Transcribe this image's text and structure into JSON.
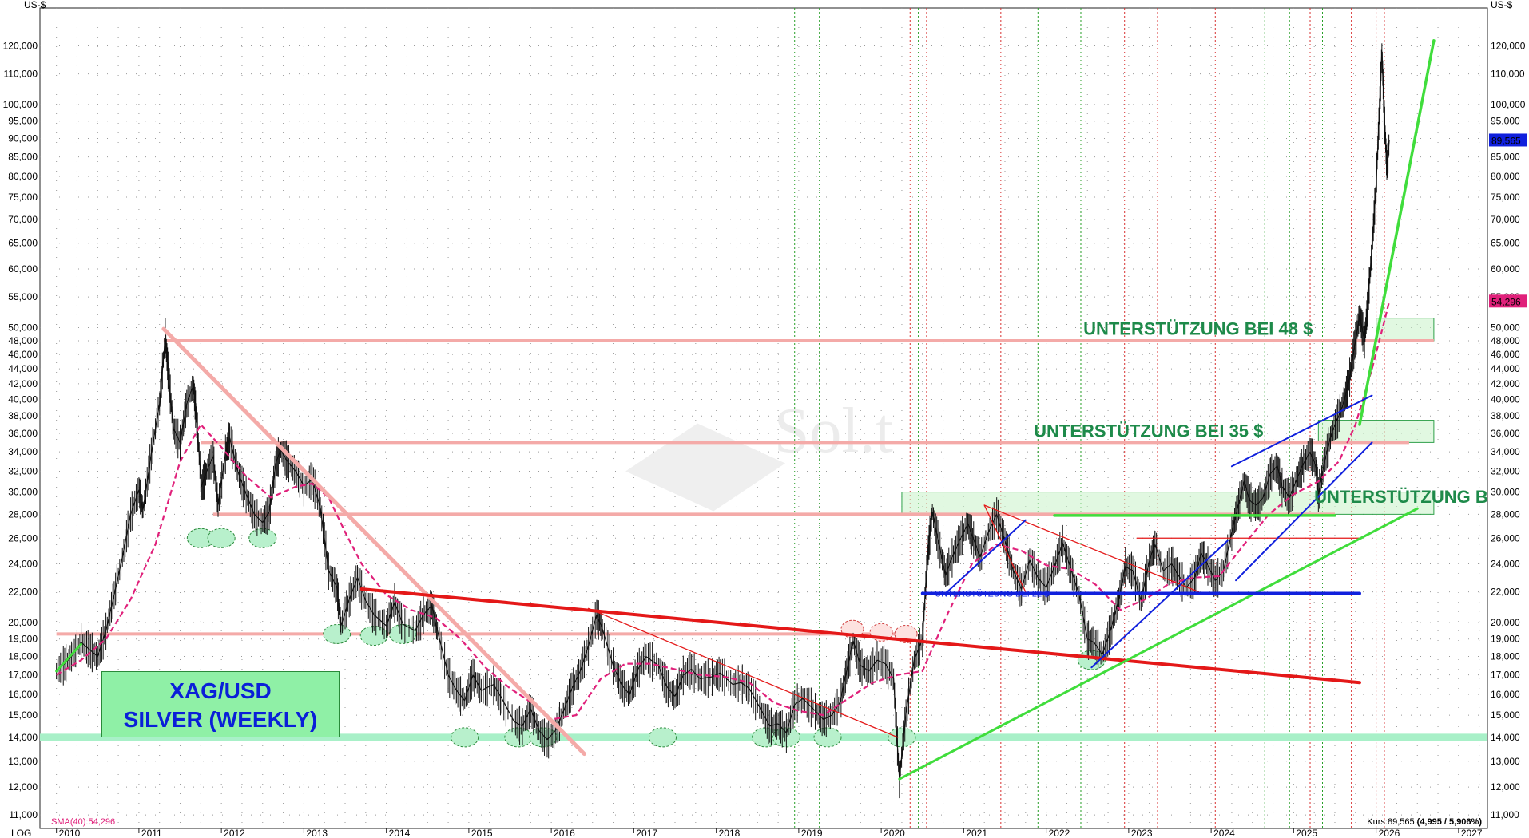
{
  "colors": {
    "pink_line": "#f4aaa8",
    "red_line": "#e41818",
    "green_line": "#40dd3c",
    "blue_line": "#1020dd",
    "sma": "#e0207a",
    "mint": "#a8f0c8",
    "support_box": "#c8f2c8"
  },
  "chart_data": {
    "type": "line",
    "instrument": "XAG/USD",
    "title_line1": "XAG/USD",
    "title_line2": "SILVER (WEEKLY)",
    "y_unit": "US-$",
    "scale": "log",
    "scale_label": "LOG",
    "x_ticks": [
      "2010",
      "2011",
      "2012",
      "2013",
      "2014",
      "2015",
      "2016",
      "2017",
      "2018",
      "2019",
      "2020",
      "2021",
      "2022",
      "2023",
      "2024",
      "2025",
      "2026",
      "2027"
    ],
    "y_ticks": [
      {
        "v": 11,
        "label": "11,000"
      },
      {
        "v": 12,
        "label": "12,000"
      },
      {
        "v": 13,
        "label": "13,000"
      },
      {
        "v": 14,
        "label": "14,000"
      },
      {
        "v": 15,
        "label": "15,000"
      },
      {
        "v": 16,
        "label": "16,000"
      },
      {
        "v": 17,
        "label": "17,000"
      },
      {
        "v": 18,
        "label": "18,000"
      },
      {
        "v": 19,
        "label": "19,000"
      },
      {
        "v": 20,
        "label": "20,000"
      },
      {
        "v": 22,
        "label": "22,000"
      },
      {
        "v": 24,
        "label": "24,000"
      },
      {
        "v": 26,
        "label": "26,000"
      },
      {
        "v": 28,
        "label": "28,000"
      },
      {
        "v": 30,
        "label": "30,000"
      },
      {
        "v": 32,
        "label": "32,000"
      },
      {
        "v": 34,
        "label": "34,000"
      },
      {
        "v": 36,
        "label": "36,000"
      },
      {
        "v": 38,
        "label": "38,000"
      },
      {
        "v": 40,
        "label": "40,000"
      },
      {
        "v": 42,
        "label": "42,000"
      },
      {
        "v": 44,
        "label": "44,000"
      },
      {
        "v": 46,
        "label": "46,000"
      },
      {
        "v": 48,
        "label": "48,000"
      },
      {
        "v": 50,
        "label": "50,000"
      },
      {
        "v": 55,
        "label": "55,000"
      },
      {
        "v": 60,
        "label": "60,000"
      },
      {
        "v": 65,
        "label": "65,000"
      },
      {
        "v": 70,
        "label": "70,000"
      },
      {
        "v": 75,
        "label": "75,000"
      },
      {
        "v": 80,
        "label": "80,000"
      },
      {
        "v": 85,
        "label": "85,000"
      },
      {
        "v": 90,
        "label": "90,000"
      },
      {
        "v": 95,
        "label": "95,000"
      },
      {
        "v": 100,
        "label": "100,000"
      },
      {
        "v": 110,
        "label": "110,000"
      },
      {
        "v": 120,
        "label": "120,000"
      }
    ],
    "price_series": [
      [
        2010.0,
        17.2
      ],
      [
        2010.1,
        17.6
      ],
      [
        2010.2,
        18.1
      ],
      [
        2010.3,
        18.8
      ],
      [
        2010.4,
        18.4
      ],
      [
        2010.5,
        18.0
      ],
      [
        2010.6,
        19.5
      ],
      [
        2010.7,
        21.8
      ],
      [
        2010.8,
        24.5
      ],
      [
        2010.9,
        28.0
      ],
      [
        2011.0,
        30.2
      ],
      [
        2011.05,
        28.4
      ],
      [
        2011.15,
        33.8
      ],
      [
        2011.25,
        39.5
      ],
      [
        2011.32,
        48.5
      ],
      [
        2011.36,
        43.0
      ],
      [
        2011.42,
        36.5
      ],
      [
        2011.5,
        35.0
      ],
      [
        2011.58,
        39.5
      ],
      [
        2011.66,
        41.8
      ],
      [
        2011.7,
        37.5
      ],
      [
        2011.76,
        30.5
      ],
      [
        2011.82,
        32.0
      ],
      [
        2011.9,
        33.5
      ],
      [
        2011.96,
        28.8
      ],
      [
        2012.05,
        33.8
      ],
      [
        2012.1,
        35.5
      ],
      [
        2012.2,
        32.0
      ],
      [
        2012.3,
        29.8
      ],
      [
        2012.4,
        28.0
      ],
      [
        2012.5,
        27.3
      ],
      [
        2012.58,
        28.2
      ],
      [
        2012.66,
        32.8
      ],
      [
        2012.72,
        34.2
      ],
      [
        2012.8,
        33.0
      ],
      [
        2012.9,
        32.0
      ],
      [
        2013.0,
        30.6
      ],
      [
        2013.1,
        31.2
      ],
      [
        2013.2,
        28.6
      ],
      [
        2013.3,
        23.5
      ],
      [
        2013.4,
        22.3
      ],
      [
        2013.45,
        19.8
      ],
      [
        2013.55,
        21.5
      ],
      [
        2013.65,
        23.0
      ],
      [
        2013.75,
        21.4
      ],
      [
        2013.85,
        20.5
      ],
      [
        2014.0,
        19.8
      ],
      [
        2014.1,
        21.3
      ],
      [
        2014.2,
        19.9
      ],
      [
        2014.35,
        19.5
      ],
      [
        2014.45,
        20.5
      ],
      [
        2014.55,
        21.1
      ],
      [
        2014.62,
        19.5
      ],
      [
        2014.75,
        17.0
      ],
      [
        2014.85,
        16.2
      ],
      [
        2014.95,
        15.7
      ],
      [
        2015.05,
        17.0
      ],
      [
        2015.15,
        16.2
      ],
      [
        2015.3,
        16.5
      ],
      [
        2015.4,
        15.8
      ],
      [
        2015.55,
        14.7
      ],
      [
        2015.65,
        14.5
      ],
      [
        2015.75,
        15.3
      ],
      [
        2015.85,
        14.3
      ],
      [
        2015.95,
        13.9
      ],
      [
        2016.05,
        14.3
      ],
      [
        2016.15,
        15.2
      ],
      [
        2016.25,
        16.3
      ],
      [
        2016.35,
        17.2
      ],
      [
        2016.45,
        18.6
      ],
      [
        2016.55,
        20.5
      ],
      [
        2016.62,
        19.6
      ],
      [
        2016.75,
        17.5
      ],
      [
        2016.85,
        16.5
      ],
      [
        2016.95,
        16.0
      ],
      [
        2017.05,
        17.3
      ],
      [
        2017.15,
        18.0
      ],
      [
        2017.3,
        17.5
      ],
      [
        2017.4,
        16.4
      ],
      [
        2017.5,
        15.9
      ],
      [
        2017.6,
        17.0
      ],
      [
        2017.7,
        17.3
      ],
      [
        2017.8,
        16.8
      ],
      [
        2017.95,
        16.9
      ],
      [
        2018.05,
        17.1
      ],
      [
        2018.2,
        16.5
      ],
      [
        2018.3,
        16.6
      ],
      [
        2018.4,
        16.3
      ],
      [
        2018.55,
        15.2
      ],
      [
        2018.65,
        14.5
      ],
      [
        2018.75,
        14.6
      ],
      [
        2018.85,
        14.2
      ],
      [
        2018.95,
        15.5
      ],
      [
        2019.05,
        15.8
      ],
      [
        2019.2,
        15.2
      ],
      [
        2019.3,
        14.8
      ],
      [
        2019.4,
        15.0
      ],
      [
        2019.5,
        15.6
      ],
      [
        2019.58,
        17.2
      ],
      [
        2019.66,
        18.9
      ],
      [
        2019.75,
        17.5
      ],
      [
        2019.85,
        17.2
      ],
      [
        2019.95,
        17.8
      ],
      [
        2020.05,
        17.6
      ],
      [
        2020.15,
        16.8
      ],
      [
        2020.22,
        12.3
      ],
      [
        2020.3,
        15.1
      ],
      [
        2020.4,
        17.8
      ],
      [
        2020.5,
        19.0
      ],
      [
        2020.56,
        24.5
      ],
      [
        2020.62,
        28.2
      ],
      [
        2020.7,
        25.5
      ],
      [
        2020.78,
        23.2
      ],
      [
        2020.86,
        24.5
      ],
      [
        2020.95,
        25.8
      ],
      [
        2021.05,
        27.2
      ],
      [
        2021.12,
        25.9
      ],
      [
        2021.2,
        24.5
      ],
      [
        2021.3,
        26.5
      ],
      [
        2021.4,
        28.0
      ],
      [
        2021.5,
        25.8
      ],
      [
        2021.6,
        23.5
      ],
      [
        2021.7,
        22.2
      ],
      [
        2021.8,
        24.3
      ],
      [
        2021.9,
        23.0
      ],
      [
        2022.0,
        22.3
      ],
      [
        2022.1,
        23.8
      ],
      [
        2022.2,
        25.6
      ],
      [
        2022.3,
        23.6
      ],
      [
        2022.4,
        21.8
      ],
      [
        2022.5,
        19.0
      ],
      [
        2022.58,
        18.8
      ],
      [
        2022.68,
        18.1
      ],
      [
        2022.78,
        19.5
      ],
      [
        2022.88,
        21.5
      ],
      [
        2022.96,
        23.8
      ],
      [
        2023.05,
        23.5
      ],
      [
        2023.15,
        21.4
      ],
      [
        2023.25,
        24.2
      ],
      [
        2023.32,
        25.5
      ],
      [
        2023.42,
        23.5
      ],
      [
        2023.52,
        24.0
      ],
      [
        2023.6,
        23.2
      ],
      [
        2023.7,
        22.3
      ],
      [
        2023.8,
        23.0
      ],
      [
        2023.88,
        24.8
      ],
      [
        2023.96,
        23.9
      ],
      [
        2024.05,
        22.8
      ],
      [
        2024.15,
        23.5
      ],
      [
        2024.25,
        26.5
      ],
      [
        2024.32,
        28.5
      ],
      [
        2024.4,
        31.0
      ],
      [
        2024.47,
        29.2
      ],
      [
        2024.55,
        28.8
      ],
      [
        2024.63,
        29.5
      ],
      [
        2024.72,
        31.8
      ],
      [
        2024.8,
        32.5
      ],
      [
        2024.86,
        30.5
      ],
      [
        2024.95,
        29.5
      ],
      [
        2025.05,
        31.5
      ],
      [
        2025.12,
        32.8
      ],
      [
        2025.2,
        34.0
      ],
      [
        2025.27,
        32.5
      ],
      [
        2025.3,
        29.8
      ],
      [
        2025.38,
        33.2
      ],
      [
        2025.46,
        36.0
      ],
      [
        2025.55,
        38.1
      ],
      [
        2025.62,
        40.0
      ],
      [
        2025.68,
        43.0
      ],
      [
        2025.74,
        47.5
      ],
      [
        2025.8,
        52.0
      ],
      [
        2025.86,
        48.2
      ],
      [
        2025.9,
        54.0
      ],
      [
        2025.95,
        64.0
      ],
      [
        2026.0,
        78.0
      ],
      [
        2026.04,
        98.0
      ],
      [
        2026.07,
        118.0
      ],
      [
        2026.1,
        96.5
      ],
      [
        2026.13,
        82.0
      ],
      [
        2026.16,
        89.565
      ]
    ],
    "sma_label": "SMA(40):54,296",
    "sma_series": [
      [
        2010.0,
        17.0
      ],
      [
        2010.3,
        17.8
      ],
      [
        2010.6,
        19.0
      ],
      [
        2010.9,
        21.5
      ],
      [
        2011.2,
        25.5
      ],
      [
        2011.5,
        33.0
      ],
      [
        2011.75,
        37.0
      ],
      [
        2012.0,
        34.5
      ],
      [
        2012.3,
        31.5
      ],
      [
        2012.6,
        29.5
      ],
      [
        2012.9,
        30.5
      ],
      [
        2013.1,
        30.8
      ],
      [
        2013.3,
        29.5
      ],
      [
        2013.5,
        26.5
      ],
      [
        2013.7,
        24.0
      ],
      [
        2014.0,
        21.8
      ],
      [
        2014.3,
        20.8
      ],
      [
        2014.6,
        20.3
      ],
      [
        2014.9,
        19.0
      ],
      [
        2015.2,
        17.4
      ],
      [
        2015.5,
        16.3
      ],
      [
        2015.8,
        15.5
      ],
      [
        2016.0,
        14.8
      ],
      [
        2016.3,
        15.0
      ],
      [
        2016.6,
        16.8
      ],
      [
        2016.9,
        17.6
      ],
      [
        2017.2,
        17.6
      ],
      [
        2017.5,
        17.3
      ],
      [
        2017.8,
        17.0
      ],
      [
        2018.1,
        16.9
      ],
      [
        2018.4,
        16.6
      ],
      [
        2018.7,
        15.6
      ],
      [
        2019.0,
        15.2
      ],
      [
        2019.3,
        15.0
      ],
      [
        2019.6,
        15.8
      ],
      [
        2019.9,
        16.6
      ],
      [
        2020.2,
        17.0
      ],
      [
        2020.5,
        17.2
      ],
      [
        2020.8,
        20.5
      ],
      [
        2021.1,
        24.0
      ],
      [
        2021.4,
        25.5
      ],
      [
        2021.7,
        25.0
      ],
      [
        2022.0,
        23.9
      ],
      [
        2022.3,
        23.6
      ],
      [
        2022.6,
        22.5
      ],
      [
        2022.9,
        20.8
      ],
      [
        2023.2,
        21.5
      ],
      [
        2023.5,
        22.6
      ],
      [
        2023.8,
        23.0
      ],
      [
        2024.1,
        23.1
      ],
      [
        2024.4,
        25.5
      ],
      [
        2024.7,
        28.0
      ],
      [
        2025.0,
        29.8
      ],
      [
        2025.3,
        31.0
      ],
      [
        2025.55,
        33.0
      ],
      [
        2025.75,
        37.0
      ],
      [
        2025.95,
        44.0
      ],
      [
        2026.1,
        51.0
      ],
      [
        2026.16,
        54.296
      ]
    ],
    "horizontal_levels_pink": [
      {
        "y": 48.0,
        "x1": 2011.3,
        "x2": 2026.7
      },
      {
        "y": 35.0,
        "x1": 2011.75,
        "x2": 2026.4
      },
      {
        "y": 28.0,
        "x1": 2011.9,
        "x2": 2025.5
      },
      {
        "y": 19.3,
        "x1": 2010.0,
        "x2": 2020.3
      }
    ],
    "level_mint": 14.0,
    "support_boxes": [
      {
        "x1": 2026.0,
        "x2": 2026.7,
        "y1": 48.0,
        "y2": 51.5
      },
      {
        "x1": 2025.3,
        "x2": 2026.7,
        "y1": 35.0,
        "y2": 37.5
      },
      {
        "x1": 2020.25,
        "x2": 2026.7,
        "y1": 28.0,
        "y2": 30.0
      }
    ],
    "trend_lines": [
      {
        "color": "pink_line",
        "w": 5,
        "pts": [
          [
            2011.3,
            49.8
          ],
          [
            2016.4,
            13.3
          ]
        ]
      },
      {
        "color": "red_line",
        "w": 4,
        "pts": [
          [
            2013.7,
            22.2
          ],
          [
            2025.8,
            16.6
          ]
        ]
      },
      {
        "color": "red_line",
        "w": 1.3,
        "pts": [
          [
            2016.45,
            20.9
          ],
          [
            2020.2,
            14.0
          ]
        ]
      },
      {
        "color": "red_line",
        "w": 1.3,
        "pts": [
          [
            2021.25,
            28.8
          ],
          [
            2023.85,
            22.0
          ]
        ]
      },
      {
        "color": "red_line",
        "w": 1.3,
        "pts": [
          [
            2023.1,
            26.0
          ],
          [
            2025.8,
            26.0
          ]
        ]
      },
      {
        "color": "red_line",
        "w": 1.3,
        "pts": [
          [
            2021.25,
            28.8
          ],
          [
            2021.75,
            22.0
          ]
        ]
      },
      {
        "color": "green_line",
        "w": 3,
        "pts": [
          [
            2020.22,
            12.3
          ],
          [
            2026.5,
            28.5
          ]
        ]
      },
      {
        "color": "green_line",
        "w": 3.5,
        "pts": [
          [
            2022.1,
            27.9
          ],
          [
            2025.5,
            27.9
          ]
        ]
      },
      {
        "color": "green_line",
        "w": 3.5,
        "pts": [
          [
            2025.8,
            37.0
          ],
          [
            2026.7,
            122.0
          ]
        ]
      },
      {
        "color": "green_line",
        "w": 3,
        "pts": [
          [
            2010.0,
            17.2
          ],
          [
            2010.3,
            18.7
          ]
        ]
      },
      {
        "color": "blue_line",
        "w": 4,
        "pts": [
          [
            2020.5,
            21.9
          ],
          [
            2025.8,
            21.9
          ]
        ]
      },
      {
        "color": "blue_line",
        "w": 2,
        "pts": [
          [
            2022.55,
            17.4
          ],
          [
            2024.2,
            25.8
          ]
        ]
      },
      {
        "color": "blue_line",
        "w": 2,
        "pts": [
          [
            2020.8,
            22.0
          ],
          [
            2021.75,
            27.5
          ]
        ]
      },
      {
        "color": "blue_line",
        "w": 2,
        "pts": [
          [
            2024.3,
            22.8
          ],
          [
            2025.95,
            35.0
          ]
        ]
      },
      {
        "color": "blue_line",
        "w": 2,
        "pts": [
          [
            2024.25,
            32.5
          ],
          [
            2025.95,
            40.5
          ]
        ]
      }
    ],
    "support_ellipses": [
      [
        2011.75,
        26.0
      ],
      [
        2012.0,
        26.0
      ],
      [
        2012.5,
        26.0
      ],
      [
        2013.4,
        19.3
      ],
      [
        2013.85,
        19.2
      ],
      [
        2014.2,
        19.3
      ],
      [
        2014.95,
        14.0
      ],
      [
        2015.6,
        14.0
      ],
      [
        2015.9,
        14.0
      ],
      [
        2017.35,
        14.0
      ],
      [
        2018.6,
        14.0
      ],
      [
        2018.85,
        14.0
      ],
      [
        2019.35,
        14.0
      ],
      [
        2020.25,
        14.0
      ],
      [
        2022.55,
        17.8
      ]
    ],
    "red_ellipses": [
      [
        2019.65,
        19.6
      ],
      [
        2020.0,
        19.4
      ],
      [
        2020.3,
        19.3
      ]
    ],
    "red_vlines": [
      2020.35,
      2020.55,
      2021.45,
      2022.95,
      2023.35,
      2024.05,
      2025.2,
      2025.7,
      2026.0,
      2026.1
    ],
    "green_vlines": [
      2018.95,
      2019.25,
      2020.45,
      2021.9,
      2022.42,
      2024.65,
      2024.95,
      2025.35
    ],
    "annotations": [
      {
        "text": "UNTERSTÜTZUNG BEI 48 $",
        "x": 2022.45,
        "y": 48.9
      },
      {
        "text": "UNTERSTÜTZUNG BEI 35 $",
        "x": 2021.85,
        "y": 35.6
      },
      {
        "text": "UNTERSTÜTZUNG B",
        "x": 2025.25,
        "y": 29.0
      }
    ],
    "blue_label": "UNTERSTÜTZUNG BEI 22 $",
    "watermark": "Sol.t",
    "last_price_label": "89,565",
    "last_price": 89.565,
    "sma_last_label": "54,296",
    "sma_last": 54.296,
    "kurs_label_prefix": "Kurs:89,565 ",
    "kurs_label_bold": "(4,995 / 5,906%)"
  }
}
